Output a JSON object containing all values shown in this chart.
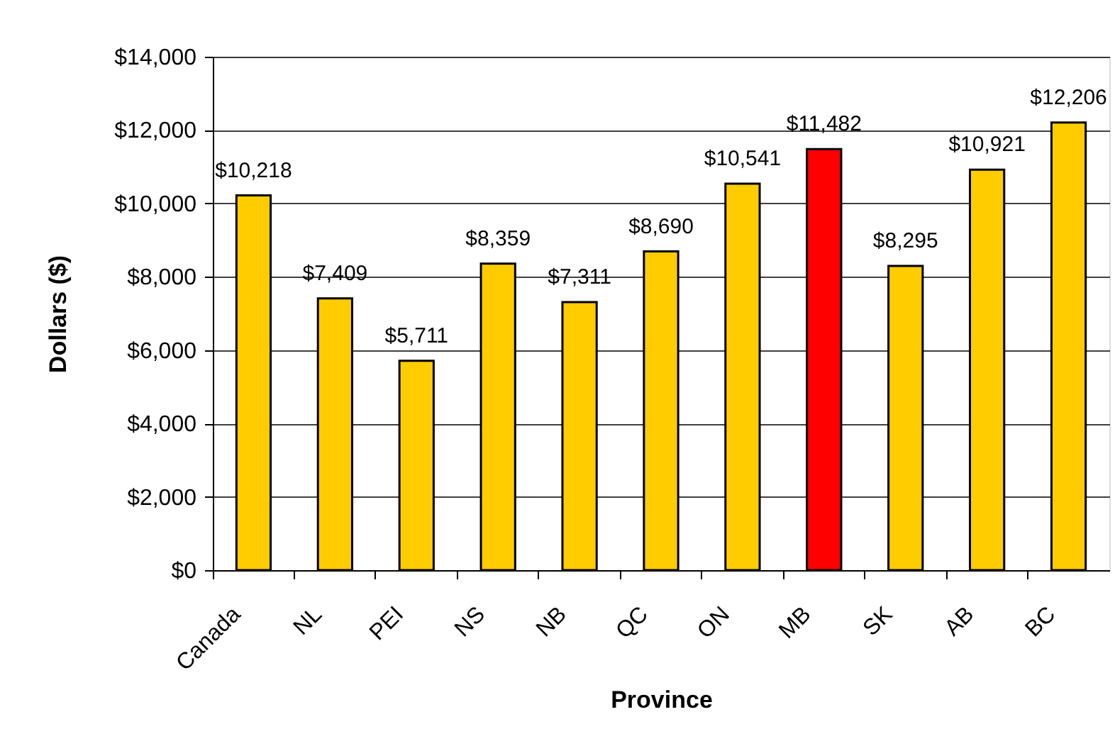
{
  "chart_data": {
    "type": "bar",
    "xlabel": "Province",
    "ylabel": "Dollars ($)",
    "categories": [
      "Canada",
      "NL",
      "PEI",
      "NS",
      "NB",
      "QC",
      "ON",
      "MB",
      "SK",
      "AB",
      "BC"
    ],
    "values": [
      10218,
      7409,
      5711,
      8359,
      7311,
      8690,
      10541,
      11482,
      8295,
      10921,
      12206
    ],
    "colors": [
      "#ffcc00",
      "#ffcc00",
      "#ffcc00",
      "#ffcc00",
      "#ffcc00",
      "#ffcc00",
      "#ffcc00",
      "#ff0000",
      "#ffcc00",
      "#ffcc00",
      "#ffcc00"
    ],
    "value_labels": [
      "$10,218",
      "$7,409",
      "$5,711",
      "$8,359",
      "$7,311",
      "$8,690",
      "$10,541",
      "$11,482",
      "$8,295",
      "$10,921",
      "$12,206"
    ],
    "ylim": [
      0,
      14000
    ],
    "yticks": [
      {
        "value": 0,
        "label": "$0"
      },
      {
        "value": 2000,
        "label": "$2,000"
      },
      {
        "value": 4000,
        "label": "$4,000"
      },
      {
        "value": 6000,
        "label": "$6,000"
      },
      {
        "value": 8000,
        "label": "$8,000"
      },
      {
        "value": 10000,
        "label": "$10,000"
      },
      {
        "value": 12000,
        "label": "$12,000"
      },
      {
        "value": 14000,
        "label": "$14,000"
      }
    ],
    "grid": "y"
  }
}
